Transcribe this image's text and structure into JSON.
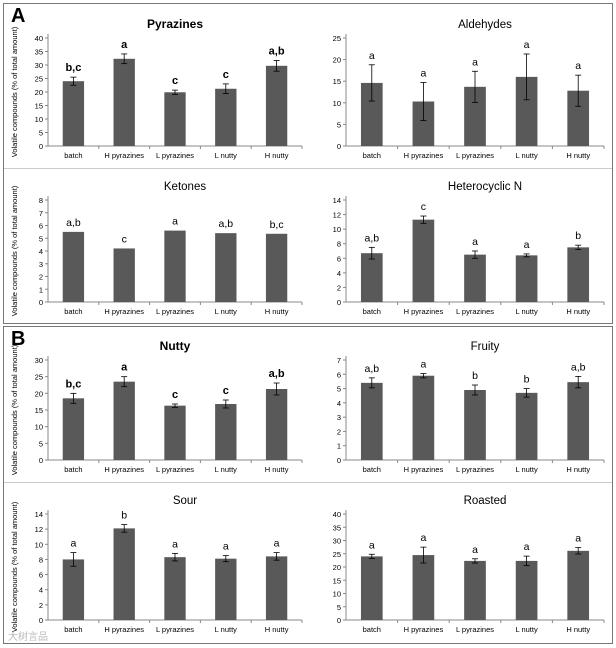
{
  "figure": {
    "panel_a_label": "A",
    "panel_b_label": "B",
    "y_axis_label": "Volatile compounds (% of total amount)",
    "watermark": "大树言品"
  },
  "chart_data": [
    {
      "type": "bar",
      "title": "Pyrazines",
      "title_bold": true,
      "categories": [
        "batch",
        "H pyrazines",
        "L pyrazines",
        "L nutty",
        "H nutty"
      ],
      "values": [
        24,
        32.3,
        19.9,
        21.2,
        29.7
      ],
      "errors": [
        1.5,
        1.8,
        0.8,
        1.8,
        2.0
      ],
      "sig_labels": [
        "b,c",
        "a",
        "c",
        "c",
        "a,b"
      ],
      "sig_bold": true,
      "ylim": [
        0,
        40
      ],
      "yticks": [
        0,
        5,
        10,
        15,
        20,
        25,
        30,
        35,
        40
      ],
      "ylabel": "Volatile compounds (% of total amount)"
    },
    {
      "type": "bar",
      "title": "Aldehydes",
      "title_bold": false,
      "categories": [
        "batch",
        "H pyrazines",
        "L pyrazines",
        "L nutty",
        "H nutty"
      ],
      "values": [
        14.6,
        10.3,
        13.7,
        16,
        12.8
      ],
      "errors": [
        4.2,
        4.4,
        3.6,
        5.3,
        3.6
      ],
      "sig_labels": [
        "a",
        "a",
        "a",
        "a",
        "a"
      ],
      "sig_bold": false,
      "ylim": [
        0,
        25
      ],
      "yticks": [
        0,
        5,
        10,
        15,
        20,
        25
      ],
      "ylabel": ""
    },
    {
      "type": "bar",
      "title": "Ketones",
      "title_bold": false,
      "categories": [
        "batch",
        "H pyrazines",
        "L pyrazines",
        "L nutty",
        "H nutty"
      ],
      "values": [
        5.5,
        4.2,
        5.6,
        5.4,
        5.35
      ],
      "errors": [
        0,
        0,
        0,
        0,
        0
      ],
      "sig_labels": [
        "a,b",
        "c",
        "a",
        "a,b",
        "b,c"
      ],
      "sig_bold": false,
      "ylim": [
        0,
        8
      ],
      "yticks": [
        0,
        1,
        2,
        3,
        4,
        5,
        6,
        7,
        8
      ],
      "ylabel": "Volatile compounds (% of total amount)"
    },
    {
      "type": "bar",
      "title": "Heterocyclic N",
      "title_bold": false,
      "categories": [
        "batch",
        "H pyrazines",
        "L pyrazines",
        "L nutty",
        "H nutty"
      ],
      "values": [
        6.7,
        11.3,
        6.5,
        6.4,
        7.5
      ],
      "errors": [
        0.8,
        0.5,
        0.5,
        0.2,
        0.3
      ],
      "sig_labels": [
        "a,b",
        "c",
        "a",
        "a",
        "b"
      ],
      "sig_bold": false,
      "ylim": [
        0,
        14
      ],
      "yticks": [
        0,
        2,
        4,
        6,
        8,
        10,
        12,
        14
      ],
      "ylabel": ""
    },
    {
      "type": "bar",
      "title": "Nutty",
      "title_bold": true,
      "categories": [
        "batch",
        "H pyrazines",
        "L pyrazines",
        "L nutty",
        "H nutty"
      ],
      "values": [
        18.5,
        23.5,
        16.3,
        16.8,
        21.3
      ],
      "errors": [
        1.5,
        1.5,
        0.5,
        1.2,
        1.8
      ],
      "sig_labels": [
        "b,c",
        "a",
        "c",
        "c",
        "a,b"
      ],
      "sig_bold": true,
      "ylim": [
        0,
        30
      ],
      "yticks": [
        0,
        5,
        10,
        15,
        20,
        25,
        30
      ],
      "ylabel": "Volatile compounds (% of total amount)"
    },
    {
      "type": "bar",
      "title": "Fruity",
      "title_bold": false,
      "categories": [
        "batch",
        "H pyrazines",
        "L pyrazines",
        "L nutty",
        "H nutty"
      ],
      "values": [
        5.4,
        5.9,
        4.9,
        4.7,
        5.45
      ],
      "errors": [
        0.35,
        0.15,
        0.35,
        0.3,
        0.4
      ],
      "sig_labels": [
        "a,b",
        "a",
        "b",
        "b",
        "a,b"
      ],
      "sig_bold": false,
      "ylim": [
        0,
        7
      ],
      "yticks": [
        0,
        1,
        2,
        3,
        4,
        5,
        6,
        7
      ],
      "ylabel": ""
    },
    {
      "type": "bar",
      "title": "Sour",
      "title_bold": false,
      "categories": [
        "batch",
        "H pyrazines",
        "L pyrazines",
        "L nutty",
        "H nutty"
      ],
      "values": [
        8,
        12.1,
        8.3,
        8.1,
        8.4
      ],
      "errors": [
        0.9,
        0.5,
        0.5,
        0.4,
        0.5
      ],
      "sig_labels": [
        "a",
        "b",
        "a",
        "a",
        "a"
      ],
      "sig_bold": false,
      "ylim": [
        0,
        14
      ],
      "yticks": [
        0,
        2,
        4,
        6,
        8,
        10,
        12,
        14
      ],
      "ylabel": "Volatile compounds (% of total amount)"
    },
    {
      "type": "bar",
      "title": "Roasted",
      "title_bold": false,
      "categories": [
        "batch",
        "H pyrazines",
        "L pyrazines",
        "L nutty",
        "H nutty"
      ],
      "values": [
        24,
        24.5,
        22.3,
        22.3,
        26.1
      ],
      "errors": [
        0.8,
        3.0,
        0.8,
        1.8,
        1.2
      ],
      "sig_labels": [
        "a",
        "a",
        "a",
        "a",
        "a"
      ],
      "sig_bold": false,
      "ylim": [
        0,
        40
      ],
      "yticks": [
        0,
        5,
        10,
        15,
        20,
        25,
        30,
        35,
        40
      ],
      "ylabel": ""
    }
  ]
}
